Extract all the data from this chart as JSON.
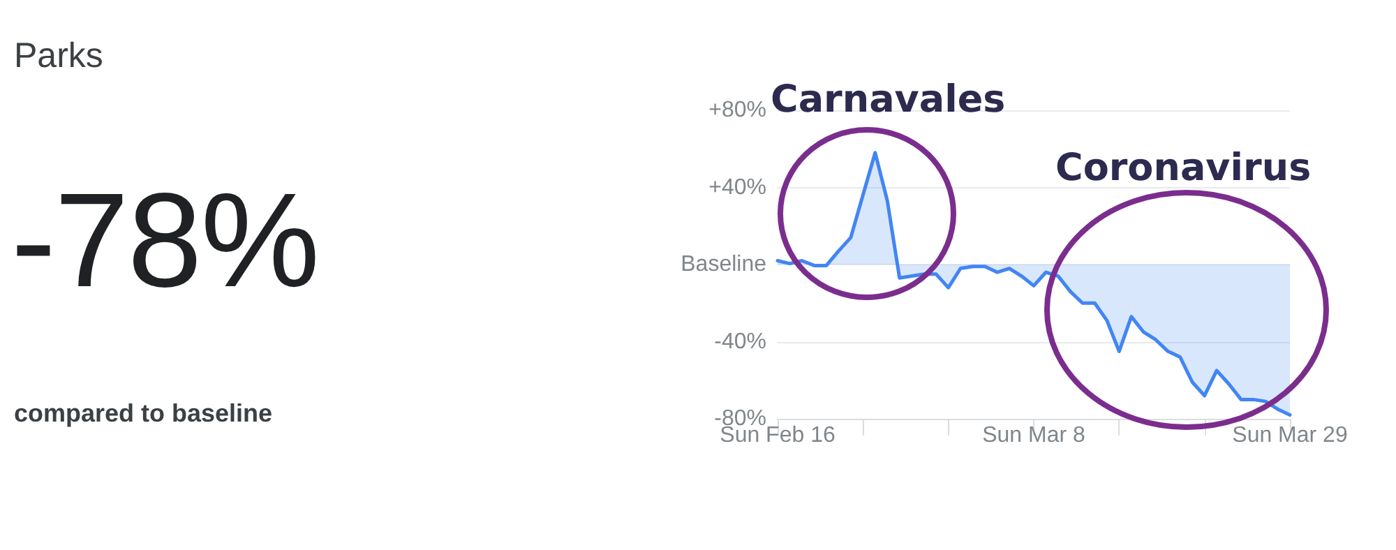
{
  "chart_data": {
    "type": "area",
    "title": "Parks",
    "annotations": [
      "-78%",
      "compared to baseline",
      "Carnavales",
      "Coronavirus"
    ],
    "x": [
      "--02-16",
      "--02-17",
      "--02-18",
      "--02-19",
      "--02-20",
      "--02-21",
      "--02-22",
      "--02-23",
      "--02-24",
      "--02-25",
      "--02-26",
      "--02-27",
      "--02-28",
      "--02-29",
      "--03-01",
      "--03-02",
      "--03-03",
      "--03-04",
      "--03-05",
      "--03-06",
      "--03-07",
      "--03-08",
      "--03-09",
      "--03-10",
      "--03-11",
      "--03-12",
      "--03-13",
      "--03-14",
      "--03-15",
      "--03-16",
      "--03-17",
      "--03-18",
      "--03-19",
      "--03-20",
      "--03-21",
      "--03-22",
      "--03-23",
      "--03-24",
      "--03-25",
      "--03-26",
      "--03-27",
      "--03-28",
      "--03-29"
    ],
    "series": [
      {
        "color": "#4285f4",
        "values": [
          2,
          0.5,
          2,
          -0.5,
          -0.5,
          7,
          14,
          36,
          58,
          33,
          -7,
          -6,
          -5,
          -5,
          -12,
          -2,
          -1,
          -1,
          -4,
          -2,
          -6,
          -11,
          -4,
          -6,
          -14,
          -20,
          -20,
          -29,
          -45,
          -27,
          -35,
          -39,
          -45,
          -48,
          -61,
          -68,
          -55,
          -62,
          -70,
          -70,
          -71,
          -75,
          -78
        ]
      }
    ],
    "xlim": [
      "--02-16",
      "--03-29"
    ],
    "xticks": [
      {
        "value": "--02-16",
        "label": "Sun Feb 16"
      },
      {
        "value": "--02-23",
        "label": null
      },
      {
        "value": "--03-01",
        "label": null
      },
      {
        "value": "--03-08",
        "label": "Sun Mar 8"
      },
      {
        "value": "--03-15",
        "label": null
      },
      {
        "value": "--03-22",
        "label": null
      },
      {
        "value": "--03-29",
        "label": "Sun Mar 29"
      }
    ],
    "ylim": [
      -80,
      80
    ],
    "yticks": [
      {
        "value": 80,
        "label": "+80%"
      },
      {
        "value": 40,
        "label": "+40%"
      },
      {
        "value": 0,
        "label": "Baseline"
      },
      {
        "value": -40,
        "label": "-40%"
      },
      {
        "value": -80,
        "label": "-80%"
      }
    ],
    "grid": "y",
    "marker": "none",
    "line_style": "solid"
  }
}
